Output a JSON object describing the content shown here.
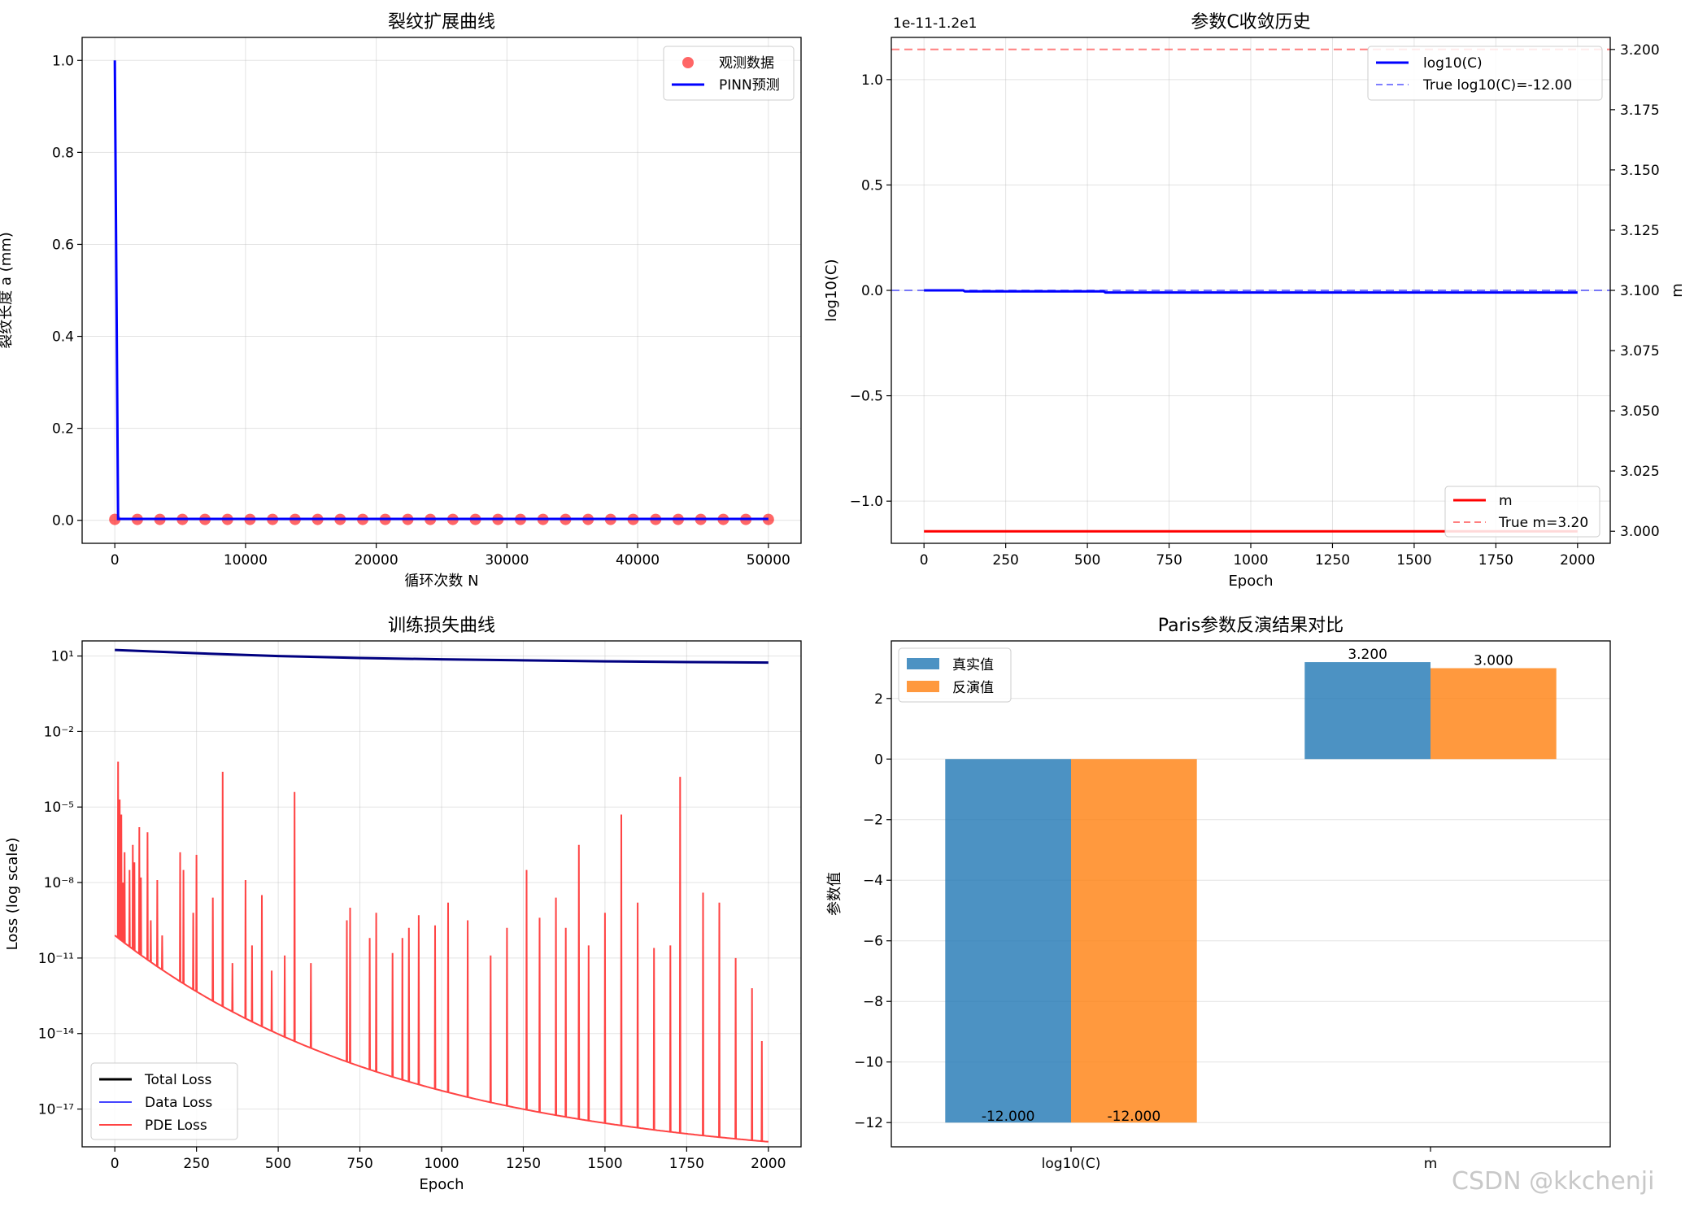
{
  "watermark": "CSDN @kkchenji",
  "chart_data": [
    {
      "id": "crack",
      "type": "line",
      "title": "裂纹扩展曲线",
      "xlabel": "循环次数 N",
      "ylabel": "裂纹长度 a (mm)",
      "xlim": [
        -2500,
        52500
      ],
      "ylim": [
        -0.05,
        1.05
      ],
      "xticks": [
        0,
        10000,
        20000,
        30000,
        40000,
        50000
      ],
      "xtick_labels": [
        "0",
        "10000",
        "20000",
        "30000",
        "40000",
        "50000"
      ],
      "yticks": [
        0.0,
        0.2,
        0.4,
        0.6,
        0.8,
        1.0
      ],
      "ytick_labels": [
        "0.0",
        "0.2",
        "0.4",
        "0.6",
        "0.8",
        "1.0"
      ],
      "grid": true,
      "legend": "top-right",
      "series": [
        {
          "name": "观测数据",
          "kind": "scatter",
          "color": "#ff0000",
          "x": [
            0,
            1724,
            3448,
            5172,
            6897,
            8621,
            10345,
            12069,
            13793,
            15517,
            17241,
            18966,
            20690,
            22414,
            24138,
            25862,
            27586,
            29310,
            31034,
            32759,
            34483,
            36207,
            37931,
            39655,
            41379,
            43103,
            44828,
            46552,
            48276,
            50000
          ],
          "y": [
            0.002,
            0.002,
            0.002,
            0.002,
            0.002,
            0.002,
            0.002,
            0.002,
            0.002,
            0.002,
            0.002,
            0.002,
            0.002,
            0.002,
            0.002,
            0.002,
            0.002,
            0.002,
            0.002,
            0.002,
            0.002,
            0.002,
            0.002,
            0.002,
            0.002,
            0.002,
            0.002,
            0.002,
            0.002,
            0.002
          ]
        },
        {
          "name": "PINN预测",
          "kind": "line",
          "color": "#0000ff",
          "x": [
            0,
            250,
            50000
          ],
          "y": [
            1.0,
            0.003,
            0.003
          ]
        }
      ]
    },
    {
      "id": "param",
      "type": "line",
      "title": "参数C收敛历史",
      "xlabel": "Epoch",
      "ylabel": "log10(C)",
      "y2label": "m",
      "offset_text": "1e-11-1.2e1",
      "xlim": [
        -100,
        2100
      ],
      "ylim": [
        -1.2,
        1.2
      ],
      "y2lim": [
        2.995,
        3.205
      ],
      "xticks": [
        0,
        250,
        500,
        750,
        1000,
        1250,
        1500,
        1750,
        2000
      ],
      "xtick_labels": [
        "0",
        "250",
        "500",
        "750",
        "1000",
        "1250",
        "1500",
        "1750",
        "2000"
      ],
      "yticks": [
        -1.0,
        -0.5,
        0.0,
        0.5,
        1.0
      ],
      "ytick_labels": [
        "−1.0",
        "−0.5",
        "0.0",
        "0.5",
        "1.0"
      ],
      "y2ticks": [
        3.0,
        3.025,
        3.05,
        3.075,
        3.1,
        3.125,
        3.15,
        3.175,
        3.2
      ],
      "y2tick_labels": [
        "3.000",
        "3.025",
        "3.050",
        "3.075",
        "3.100",
        "3.125",
        "3.150",
        "3.175",
        "3.200"
      ],
      "grid": true,
      "legend": "top-right",
      "legend2": "bottom-right",
      "series": [
        {
          "name": "log10(C)",
          "axis": "left",
          "color": "#0000ff",
          "x": [
            0,
            120,
            125,
            550,
            555,
            2000
          ],
          "y": [
            0.0,
            0.0,
            -0.005,
            -0.005,
            -0.01,
            -0.01
          ]
        },
        {
          "name": "True log10(C)=-12.00",
          "axis": "left",
          "color": "#0000ff",
          "dash": true,
          "hline": 0.0
        }
      ],
      "series2": [
        {
          "name": "m",
          "axis": "right",
          "color": "#ff0000",
          "x": [
            0,
            2000
          ],
          "y": [
            3.0,
            3.0
          ]
        },
        {
          "name": "True m=3.20",
          "axis": "right",
          "color": "#ff0000",
          "dash": true,
          "hline": 3.2
        }
      ]
    },
    {
      "id": "loss",
      "type": "line",
      "title": "训练损失曲线",
      "xlabel": "Epoch",
      "ylabel": "Loss (log scale)",
      "yscale": "log",
      "xlim": [
        -100,
        2100
      ],
      "ylim_log10": [
        -18.5,
        1.6
      ],
      "xticks": [
        0,
        250,
        500,
        750,
        1000,
        1250,
        1500,
        1750,
        2000
      ],
      "xtick_labels": [
        "0",
        "250",
        "500",
        "750",
        "1000",
        "1250",
        "1500",
        "1750",
        "2000"
      ],
      "yticks_log10": [
        1,
        -2,
        -5,
        -8,
        -11,
        -14,
        -17
      ],
      "ytick_labels": [
        "10¹",
        "10⁻²",
        "10⁻⁵",
        "10⁻⁸",
        "10⁻¹¹",
        "10⁻¹⁴",
        "10⁻¹⁷"
      ],
      "grid": true,
      "legend": "bottom-left",
      "series": [
        {
          "name": "Total Loss",
          "color": "#000080",
          "legend_color": "#000000",
          "x": [
            0,
            250,
            500,
            750,
            1000,
            1250,
            1500,
            1750,
            2000
          ],
          "log10_y": [
            1.24,
            1.11,
            1.0,
            0.92,
            0.87,
            0.83,
            0.79,
            0.76,
            0.74
          ]
        },
        {
          "name": "Data Loss",
          "color": "#4444ff",
          "x": [],
          "log10_y": []
        },
        {
          "name": "PDE Loss",
          "color": "#ff4444",
          "baseline_log10": [
            -10.1,
            -18.3
          ],
          "spikes": [
            [
              10,
              -3.2
            ],
            [
              15,
              -4.7
            ],
            [
              20,
              -5.3
            ],
            [
              25,
              -8.0
            ],
            [
              30,
              -6.8
            ],
            [
              45,
              -7.5
            ],
            [
              55,
              -6.5
            ],
            [
              60,
              -7.2
            ],
            [
              75,
              -5.8
            ],
            [
              80,
              -7.8
            ],
            [
              100,
              -6.0
            ],
            [
              110,
              -9.5
            ],
            [
              130,
              -7.9
            ],
            [
              145,
              -10.1
            ],
            [
              200,
              -6.8
            ],
            [
              210,
              -7.5
            ],
            [
              240,
              -9.2
            ],
            [
              250,
              -6.9
            ],
            [
              300,
              -8.6
            ],
            [
              330,
              -3.6
            ],
            [
              360,
              -11.2
            ],
            [
              400,
              -7.9
            ],
            [
              420,
              -10.5
            ],
            [
              450,
              -8.5
            ],
            [
              480,
              -11.5
            ],
            [
              520,
              -10.9
            ],
            [
              550,
              -4.4
            ],
            [
              600,
              -11.2
            ],
            [
              710,
              -9.5
            ],
            [
              720,
              -9.0
            ],
            [
              780,
              -10.2
            ],
            [
              800,
              -9.2
            ],
            [
              850,
              -10.8
            ],
            [
              880,
              -10.2
            ],
            [
              900,
              -9.8
            ],
            [
              930,
              -9.3
            ],
            [
              980,
              -9.7
            ],
            [
              1020,
              -8.8
            ],
            [
              1080,
              -9.5
            ],
            [
              1150,
              -10.9
            ],
            [
              1200,
              -9.8
            ],
            [
              1260,
              -7.5
            ],
            [
              1300,
              -9.4
            ],
            [
              1350,
              -8.6
            ],
            [
              1380,
              -9.8
            ],
            [
              1420,
              -6.5
            ],
            [
              1450,
              -10.5
            ],
            [
              1500,
              -9.2
            ],
            [
              1550,
              -5.3
            ],
            [
              1600,
              -8.8
            ],
            [
              1650,
              -10.6
            ],
            [
              1700,
              -10.5
            ],
            [
              1730,
              -3.8
            ],
            [
              1800,
              -8.4
            ],
            [
              1850,
              -8.8
            ],
            [
              1900,
              -11.0
            ],
            [
              1950,
              -12.2
            ],
            [
              1980,
              -14.3
            ]
          ]
        }
      ]
    },
    {
      "id": "compare",
      "type": "bar",
      "title": "Paris参数反演结果对比",
      "ylabel": "参数值",
      "categories": [
        "log10(C)",
        "m"
      ],
      "ylim": [
        -12.8,
        3.9
      ],
      "yticks": [
        -12,
        -10,
        -8,
        -6,
        -4,
        -2,
        0,
        2
      ],
      "ytick_labels": [
        "−12",
        "−10",
        "−8",
        "−6",
        "−4",
        "−2",
        "0",
        "2"
      ],
      "grid": true,
      "legend": "top-left",
      "series": [
        {
          "name": "真实值",
          "color": "#1f77b4",
          "values": [
            -12.0,
            3.2
          ],
          "labels": [
            "-12.000",
            "3.200"
          ]
        },
        {
          "name": "反演值",
          "color": "#ff7f0e",
          "values": [
            -12.0,
            3.0
          ],
          "labels": [
            "-12.000",
            "3.000"
          ]
        }
      ]
    }
  ]
}
